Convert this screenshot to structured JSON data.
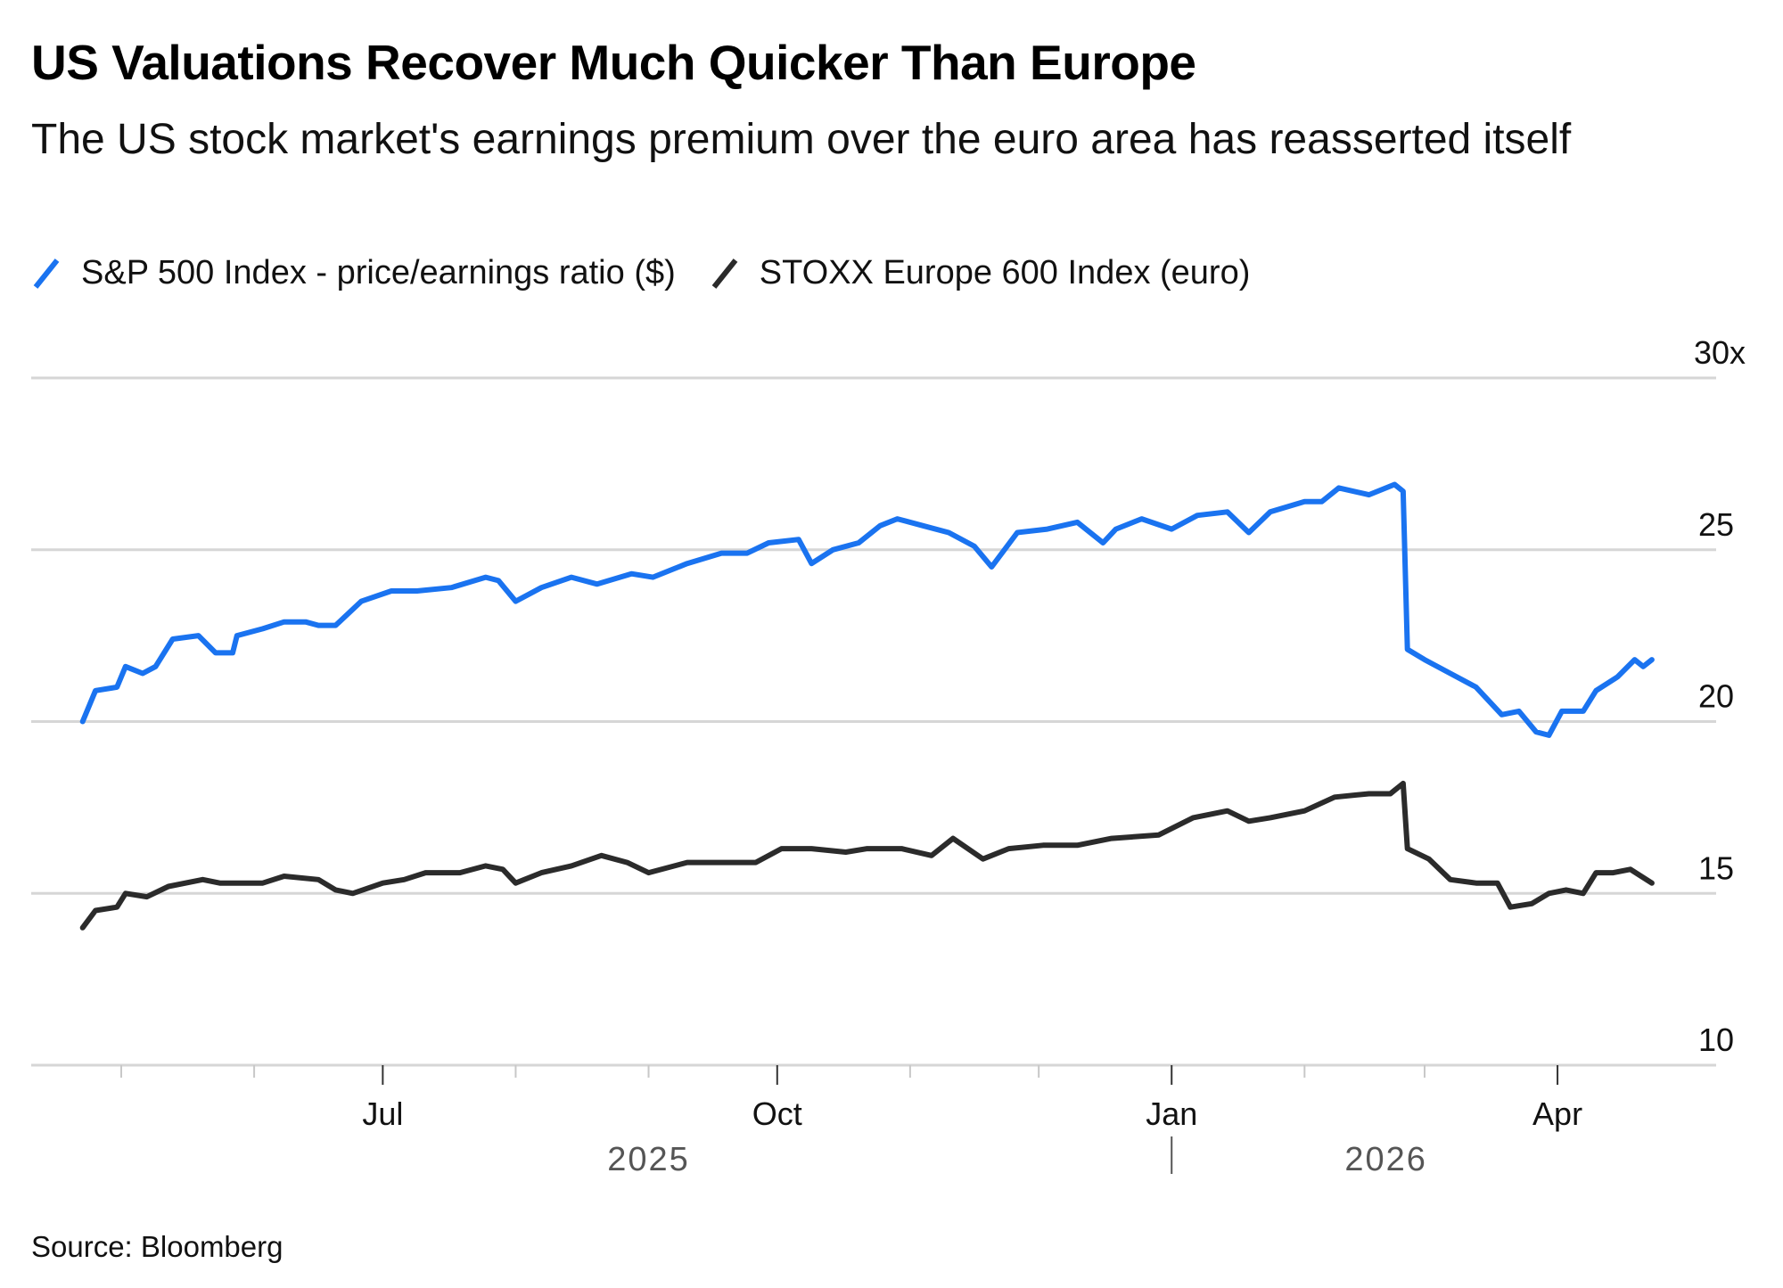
{
  "header": {
    "title": "US Valuations Recover Much Quicker Than Europe",
    "subtitle": "The US stock market's earnings premium over the euro area has reasserted itself"
  },
  "legend": [
    {
      "label": "S&P 500 Index - price/earnings ratio ($)",
      "color": "#1a73f0"
    },
    {
      "label": "STOXX Europe 600 Index (euro)",
      "color": "#2b2b2b"
    }
  ],
  "footer": {
    "source": "Source: Bloomberg"
  },
  "chart_data": {
    "type": "line",
    "title": "US Valuations Recover Much Quicker Than Europe",
    "subtitle": "The US stock market's earnings premium over the euro area has reasserted itself",
    "xlabel": "",
    "ylabel": "",
    "ylim": [
      10,
      30
    ],
    "y_ticks": [
      {
        "value": 30,
        "label": "30x"
      },
      {
        "value": 25,
        "label": "25"
      },
      {
        "value": 20,
        "label": "20"
      },
      {
        "value": 15,
        "label": "15"
      },
      {
        "value": 10,
        "label": "10"
      }
    ],
    "y_axis_side": "right",
    "grid": true,
    "legend_position": "top-left",
    "xlim": [
      "2025-04-10",
      "2026-05-08"
    ],
    "x_ticks_major": [
      {
        "date": "2025-07-01",
        "label": "Jul"
      },
      {
        "date": "2025-10-01",
        "label": "Oct"
      },
      {
        "date": "2026-01-01",
        "label": "Jan"
      },
      {
        "date": "2026-04-01",
        "label": "Apr"
      }
    ],
    "x_ticks_minor": [
      "2025-05-01",
      "2025-06-01",
      "2025-08-01",
      "2025-09-01",
      "2025-11-01",
      "2025-12-01",
      "2026-02-01",
      "2026-03-01"
    ],
    "year_labels": [
      {
        "label": "2025",
        "date": "2025-09-01"
      },
      {
        "label": "2026",
        "date": "2026-02-20"
      }
    ],
    "year_divider": "2026-01-01",
    "series": [
      {
        "name": "S&P 500 Index - price/earnings ratio ($)",
        "color": "#1a73f0",
        "points": [
          [
            "2025-04-22",
            20.0
          ],
          [
            "2025-04-25",
            20.9
          ],
          [
            "2025-04-30",
            21.0
          ],
          [
            "2025-05-02",
            21.6
          ],
          [
            "2025-05-06",
            21.4
          ],
          [
            "2025-05-09",
            21.6
          ],
          [
            "2025-05-13",
            22.4
          ],
          [
            "2025-05-19",
            22.5
          ],
          [
            "2025-05-23",
            22.0
          ],
          [
            "2025-05-27",
            22.0
          ],
          [
            "2025-05-28",
            22.5
          ],
          [
            "2025-06-03",
            22.7
          ],
          [
            "2025-06-08",
            22.9
          ],
          [
            "2025-06-13",
            22.9
          ],
          [
            "2025-06-16",
            22.8
          ],
          [
            "2025-06-20",
            22.8
          ],
          [
            "2025-06-26",
            23.5
          ],
          [
            "2025-07-03",
            23.8
          ],
          [
            "2025-07-09",
            23.8
          ],
          [
            "2025-07-17",
            23.9
          ],
          [
            "2025-07-25",
            24.2
          ],
          [
            "2025-07-28",
            24.1
          ],
          [
            "2025-08-01",
            23.5
          ],
          [
            "2025-08-07",
            23.9
          ],
          [
            "2025-08-14",
            24.2
          ],
          [
            "2025-08-20",
            24.0
          ],
          [
            "2025-08-28",
            24.3
          ],
          [
            "2025-09-02",
            24.2
          ],
          [
            "2025-09-10",
            24.6
          ],
          [
            "2025-09-18",
            24.9
          ],
          [
            "2025-09-24",
            24.9
          ],
          [
            "2025-09-29",
            25.2
          ],
          [
            "2025-10-06",
            25.3
          ],
          [
            "2025-10-09",
            24.6
          ],
          [
            "2025-10-14",
            25.0
          ],
          [
            "2025-10-20",
            25.2
          ],
          [
            "2025-10-25",
            25.7
          ],
          [
            "2025-10-29",
            25.9
          ],
          [
            "2025-11-04",
            25.7
          ],
          [
            "2025-11-10",
            25.5
          ],
          [
            "2025-11-16",
            25.1
          ],
          [
            "2025-11-20",
            24.5
          ],
          [
            "2025-11-26",
            25.5
          ],
          [
            "2025-12-03",
            25.6
          ],
          [
            "2025-12-10",
            25.8
          ],
          [
            "2025-12-16",
            25.2
          ],
          [
            "2025-12-19",
            25.6
          ],
          [
            "2025-12-25",
            25.9
          ],
          [
            "2026-01-01",
            25.6
          ],
          [
            "2026-01-07",
            26.0
          ],
          [
            "2026-01-14",
            26.1
          ],
          [
            "2026-01-19",
            25.5
          ],
          [
            "2026-01-24",
            26.1
          ],
          [
            "2026-02-01",
            26.4
          ],
          [
            "2026-02-05",
            26.4
          ],
          [
            "2026-02-09",
            26.8
          ],
          [
            "2026-02-16",
            26.6
          ],
          [
            "2026-02-22",
            26.9
          ],
          [
            "2026-02-24",
            26.7
          ],
          [
            "2026-02-25",
            22.1
          ],
          [
            "2026-03-01",
            21.8
          ],
          [
            "2026-03-07",
            21.4
          ],
          [
            "2026-03-13",
            21.0
          ],
          [
            "2026-03-19",
            20.2
          ],
          [
            "2026-03-23",
            20.3
          ],
          [
            "2026-03-27",
            19.7
          ],
          [
            "2026-03-30",
            19.6
          ],
          [
            "2026-04-02",
            20.3
          ],
          [
            "2026-04-07",
            20.3
          ],
          [
            "2026-04-10",
            20.9
          ],
          [
            "2026-04-15",
            21.3
          ],
          [
            "2026-04-19",
            21.8
          ],
          [
            "2026-04-21",
            21.6
          ],
          [
            "2026-04-23",
            21.8
          ]
        ]
      },
      {
        "name": "STOXX Europe 600 Index (euro)",
        "color": "#2b2b2b",
        "points": [
          [
            "2025-04-22",
            14.0
          ],
          [
            "2025-04-25",
            14.5
          ],
          [
            "2025-04-30",
            14.6
          ],
          [
            "2025-05-02",
            15.0
          ],
          [
            "2025-05-07",
            14.9
          ],
          [
            "2025-05-12",
            15.2
          ],
          [
            "2025-05-20",
            15.4
          ],
          [
            "2025-05-24",
            15.3
          ],
          [
            "2025-06-03",
            15.3
          ],
          [
            "2025-06-08",
            15.5
          ],
          [
            "2025-06-16",
            15.4
          ],
          [
            "2025-06-20",
            15.1
          ],
          [
            "2025-06-24",
            15.0
          ],
          [
            "2025-07-01",
            15.3
          ],
          [
            "2025-07-06",
            15.4
          ],
          [
            "2025-07-11",
            15.6
          ],
          [
            "2025-07-19",
            15.6
          ],
          [
            "2025-07-25",
            15.8
          ],
          [
            "2025-07-29",
            15.7
          ],
          [
            "2025-08-01",
            15.3
          ],
          [
            "2025-08-07",
            15.6
          ],
          [
            "2025-08-14",
            15.8
          ],
          [
            "2025-08-21",
            16.1
          ],
          [
            "2025-08-27",
            15.9
          ],
          [
            "2025-09-01",
            15.6
          ],
          [
            "2025-09-10",
            15.9
          ],
          [
            "2025-09-18",
            15.9
          ],
          [
            "2025-09-26",
            15.9
          ],
          [
            "2025-10-02",
            16.3
          ],
          [
            "2025-10-09",
            16.3
          ],
          [
            "2025-10-17",
            16.2
          ],
          [
            "2025-10-22",
            16.3
          ],
          [
            "2025-10-30",
            16.3
          ],
          [
            "2025-11-06",
            16.1
          ],
          [
            "2025-11-11",
            16.6
          ],
          [
            "2025-11-18",
            16.0
          ],
          [
            "2025-11-24",
            16.3
          ],
          [
            "2025-12-02",
            16.4
          ],
          [
            "2025-12-10",
            16.4
          ],
          [
            "2025-12-18",
            16.6
          ],
          [
            "2025-12-29",
            16.7
          ],
          [
            "2026-01-06",
            17.2
          ],
          [
            "2026-01-14",
            17.4
          ],
          [
            "2026-01-19",
            17.1
          ],
          [
            "2026-01-24",
            17.2
          ],
          [
            "2026-02-01",
            17.4
          ],
          [
            "2026-02-08",
            17.8
          ],
          [
            "2026-02-16",
            17.9
          ],
          [
            "2026-02-21",
            17.9
          ],
          [
            "2026-02-24",
            18.2
          ],
          [
            "2026-02-25",
            16.3
          ],
          [
            "2026-03-02",
            16.0
          ],
          [
            "2026-03-07",
            15.4
          ],
          [
            "2026-03-13",
            15.3
          ],
          [
            "2026-03-18",
            15.3
          ],
          [
            "2026-03-21",
            14.6
          ],
          [
            "2026-03-26",
            14.7
          ],
          [
            "2026-03-30",
            15.0
          ],
          [
            "2026-04-03",
            15.1
          ],
          [
            "2026-04-07",
            15.0
          ],
          [
            "2026-04-10",
            15.6
          ],
          [
            "2026-04-14",
            15.6
          ],
          [
            "2026-04-18",
            15.7
          ],
          [
            "2026-04-23",
            15.3
          ]
        ]
      }
    ]
  }
}
